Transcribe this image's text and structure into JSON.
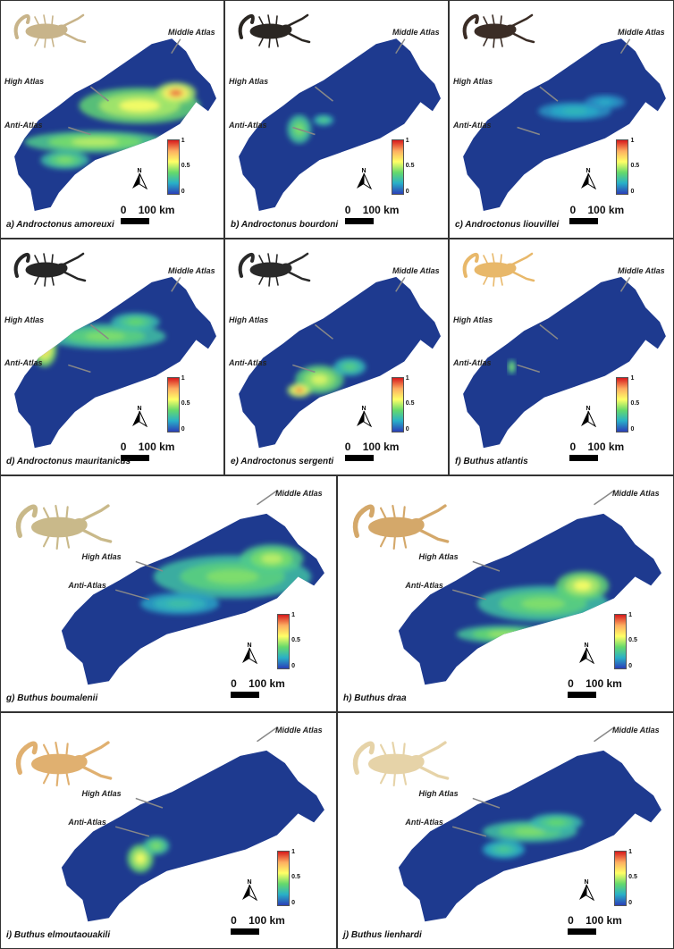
{
  "labels": {
    "middle_atlas": "Middle Atlas",
    "high_atlas": "High Atlas",
    "anti_atlas": "Anti-Atlas"
  },
  "legend": {
    "max": "1",
    "mid": "0.5",
    "min": "0"
  },
  "north_letter": "N",
  "scale": {
    "zero": "0",
    "distance": "100 km"
  },
  "colors": {
    "map_base": "#1e3a8f",
    "high": "#d7191c",
    "mid": "#ffff66",
    "low": "#2b3fb8"
  },
  "panels": [
    {
      "caption": "a) Androctonus amoreuxi",
      "scorpion_color": "#c8b48a"
    },
    {
      "caption": "b) Androctonus bourdoni",
      "scorpion_color": "#2a2622"
    },
    {
      "caption": "c) Androctonus liouvillei",
      "scorpion_color": "#3b2d26"
    },
    {
      "caption": "d) Androctonus mauritanicus",
      "scorpion_color": "#262626"
    },
    {
      "caption": "e) Androctonus sergenti",
      "scorpion_color": "#2a2a2a"
    },
    {
      "caption": "f) Buthus atlantis",
      "scorpion_color": "#e8b86a"
    },
    {
      "caption": "g) Buthus boumalenii",
      "scorpion_color": "#c9b98a"
    },
    {
      "caption": "h) Buthus draa",
      "scorpion_color": "#d4a86a"
    },
    {
      "caption": "i) Buthus elmoutaouakili",
      "scorpion_color": "#e0b070"
    },
    {
      "caption": "j) Buthus lienhardi",
      "scorpion_color": "#e6d3a8"
    }
  ]
}
